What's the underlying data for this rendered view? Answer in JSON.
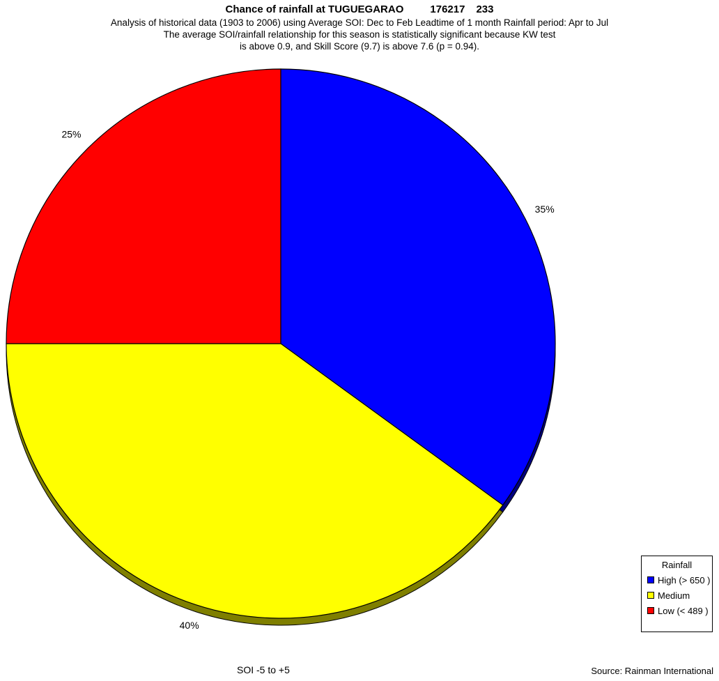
{
  "header": {
    "title": "Chance of rainfall at TUGUEGARAO",
    "station_id": "176217",
    "station_num": "233",
    "subtitle_1": "Analysis of historical data (1903 to 2006) using Average SOI: Dec to Feb  Leadtime of 1 month Rainfall period: Apr to Jul",
    "subtitle_2": "The average SOI/rainfall relationship for this season is statistically significant because KW test",
    "subtitle_3": "is above 0.9, and Skill Score (9.7) is above 7.6 (p = 0.94)."
  },
  "chart_data": {
    "type": "pie",
    "title": "Chance of rainfall at TUGUEGARAO",
    "slices": [
      {
        "label": "High (> 650 )",
        "value": 35,
        "display": "35%",
        "color": "#0000ff",
        "shade": "#00007f"
      },
      {
        "label": "Medium",
        "value": 40,
        "display": "40%",
        "color": "#ffff00",
        "shade": "#7f7f00"
      },
      {
        "label": "Low (< 489 )",
        "value": 25,
        "display": "25%",
        "color": "#ff0000",
        "shade": "#7f0000"
      }
    ],
    "start_angle": "12 o'clock",
    "direction": "clockwise",
    "legend_title": "Rainfall",
    "legend_position": "bottom-right"
  },
  "footer": {
    "soi_range": "SOI -5 to +5",
    "source": "Source: Rainman International"
  }
}
